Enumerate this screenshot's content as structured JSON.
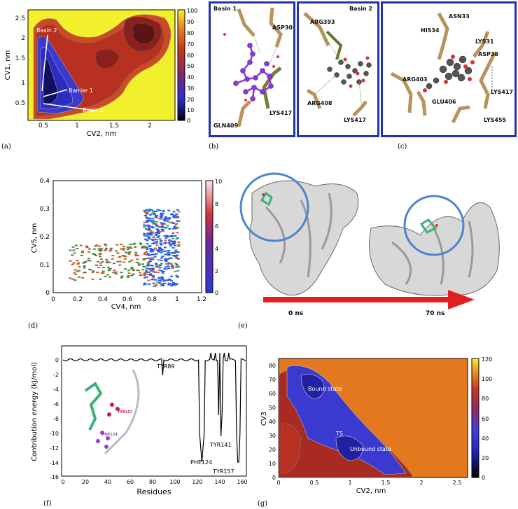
{
  "panel_labels": {
    "a": "(a)",
    "b": "(b)",
    "c": "(c)",
    "d": "(d)",
    "e": "(e)",
    "f": "(f)",
    "g": "(g)"
  },
  "panel_a": {
    "xlabel": "CV2, nm",
    "ylabel": "CV1, nm",
    "xticks": [
      "0.5",
      "1",
      "1.5",
      "2"
    ],
    "yticks": [
      "0.5",
      "1",
      "1.5",
      "2",
      "2.5"
    ],
    "cbar_ticks": [
      "100",
      "90",
      "80",
      "70",
      "60",
      "50",
      "40",
      "30",
      "20",
      "10",
      "0"
    ],
    "annotations": {
      "basin2": "Basin 2",
      "barrier1": "Barrier 1",
      "basin1": "Basin 1"
    },
    "colors": {
      "bg": "#f2ef2c",
      "hot": "#b0322a",
      "cold": "#3437c9"
    }
  },
  "panel_b": {
    "left": {
      "title": "Basin 1",
      "residues": [
        "ASP30",
        "GLN409",
        "LYS417"
      ]
    },
    "right": {
      "title": "Basin 2",
      "residues": [
        "ARG393",
        "ARG408",
        "LYS417"
      ]
    }
  },
  "panel_c": {
    "residues": [
      "ASN33",
      "HIS34",
      "LYS31",
      "ASP38",
      "ARG403",
      "GLU406",
      "LYS417",
      "LYS455"
    ]
  },
  "panel_d": {
    "xlabel": "CV4, nm",
    "ylabel": "CV5, nm",
    "xticks": [
      "0",
      "0.2",
      "0.4",
      "0.6",
      "0.8",
      "1",
      "1.2"
    ],
    "yticks": [
      "0",
      "0.1",
      "0.2",
      "0.3",
      "0.4"
    ],
    "cbar_ticks": [
      "10",
      "8",
      "6",
      "4",
      "2",
      "0"
    ]
  },
  "panel_e": {
    "labels": {
      "start": "0 ns",
      "end": "70 ns"
    }
  },
  "panel_f": {
    "xlabel": "Residues",
    "ylabel": "Contribution energy (kJ/mol)",
    "xticks": [
      "0",
      "20",
      "40",
      "60",
      "80",
      "100",
      "120",
      "140",
      "160"
    ],
    "yticks": [
      "0",
      "-2",
      "-4",
      "-6",
      "-8",
      "-10",
      "-12",
      "-14",
      "-16"
    ],
    "annotations": [
      "TYR89",
      "PHE124",
      "TYR141",
      "TYR157"
    ],
    "inset_labels": [
      "TYR157",
      "PHE124"
    ]
  },
  "panel_g": {
    "xlabel": "CV2, nm",
    "ylabel": "CV3",
    "xticks": [
      "0",
      "0.5",
      "1",
      "1.5",
      "2",
      "2.5"
    ],
    "yticks": [
      "0",
      "10",
      "20",
      "30",
      "40",
      "50",
      "60",
      "70",
      "80"
    ],
    "cbar_ticks": [
      "120",
      "100",
      "80",
      "60",
      "40",
      "20",
      "0"
    ],
    "annotations": {
      "bound": "Bound state",
      "ts": "TS",
      "unbound": "Unbound state"
    },
    "colors": {
      "bg": "#e4781e"
    }
  }
}
